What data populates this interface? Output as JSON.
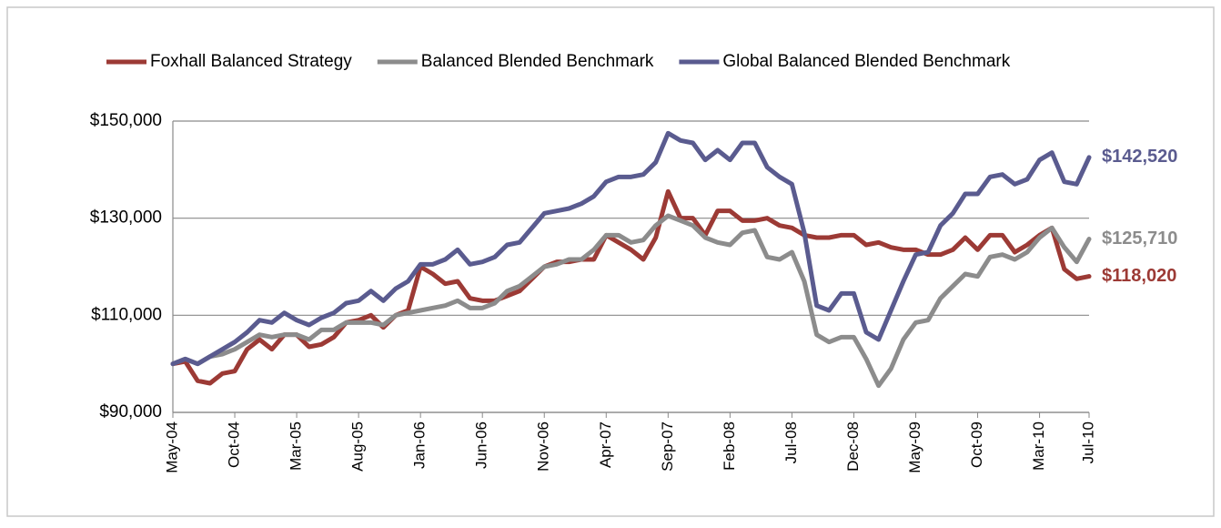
{
  "chart_data": {
    "type": "line",
    "categories": [
      "May-04",
      null,
      null,
      null,
      null,
      "Oct-04",
      null,
      null,
      null,
      null,
      "Mar-05",
      null,
      null,
      null,
      null,
      "Aug-05",
      null,
      null,
      null,
      null,
      "Jan-06",
      null,
      null,
      null,
      null,
      "Jun-06",
      null,
      null,
      null,
      null,
      "Nov-06",
      null,
      null,
      null,
      null,
      "Apr-07",
      null,
      null,
      null,
      null,
      "Sep-07",
      null,
      null,
      null,
      null,
      "Feb-08",
      null,
      null,
      null,
      null,
      "Jul-08",
      null,
      null,
      null,
      null,
      "Dec-08",
      null,
      null,
      null,
      null,
      "May-09",
      null,
      null,
      null,
      null,
      "Oct-09",
      null,
      null,
      null,
      null,
      "Mar-10",
      null,
      null,
      null,
      "Jul-10"
    ],
    "series": [
      {
        "name": "Foxhall Balanced Strategy",
        "color": "#9c3a35",
        "values": [
          100000,
          100500,
          96500,
          96000,
          98000,
          98500,
          103000,
          105000,
          103000,
          106000,
          106000,
          103500,
          104000,
          105500,
          108500,
          109000,
          110000,
          107500,
          110000,
          111000,
          120000,
          118500,
          116500,
          117000,
          113500,
          113000,
          113000,
          114000,
          115000,
          117500,
          120000,
          121000,
          121000,
          121500,
          121500,
          126500,
          125000,
          123500,
          121500,
          126000,
          135500,
          130000,
          130000,
          126500,
          131500,
          131500,
          129500,
          129500,
          130000,
          128500,
          128000,
          126500,
          126000,
          126000,
          126500,
          126500,
          124500,
          125000,
          124000,
          123500,
          123500,
          122500,
          122500,
          123500,
          126000,
          123500,
          126500,
          126500,
          123000,
          124500,
          126500,
          128000,
          119500,
          117500,
          118020
        ],
        "value_labels": [
          null,
          null,
          null,
          null,
          null,
          null,
          null,
          null,
          null,
          null,
          null,
          null,
          null,
          null,
          null,
          null,
          null,
          null,
          null,
          null,
          null,
          null,
          null,
          null,
          null,
          null,
          null,
          null,
          null,
          null,
          null,
          null,
          null,
          null,
          null,
          null,
          null,
          null,
          null,
          null,
          null,
          null,
          null,
          null,
          null,
          null,
          null,
          null,
          null,
          null,
          null,
          null,
          null,
          null,
          null,
          null,
          null,
          null,
          null,
          null,
          null,
          null,
          null,
          null,
          null,
          null,
          null,
          null,
          null,
          null,
          null,
          null,
          null,
          null,
          "$118,020"
        ]
      },
      {
        "name": "Balanced Blended Benchmark",
        "color": "#8c8c8c",
        "values": [
          100000,
          101000,
          100000,
          101500,
          102000,
          103000,
          104500,
          106000,
          105500,
          106000,
          106000,
          105000,
          107000,
          107000,
          108500,
          108500,
          108500,
          108000,
          110000,
          110500,
          111000,
          111500,
          112000,
          113000,
          111500,
          111500,
          112500,
          115000,
          116000,
          118000,
          120000,
          120500,
          121500,
          121500,
          123500,
          126500,
          126500,
          125000,
          125500,
          128500,
          130500,
          129500,
          128500,
          126000,
          125000,
          124500,
          127000,
          127500,
          122000,
          121500,
          123000,
          117000,
          106000,
          104500,
          105500,
          105500,
          101000,
          95500,
          99000,
          105000,
          108500,
          109000,
          113500,
          116000,
          118500,
          118000,
          122000,
          122500,
          121500,
          123000,
          126000,
          128000,
          124000,
          121000,
          125710
        ],
        "value_labels": [
          null,
          null,
          null,
          null,
          null,
          null,
          null,
          null,
          null,
          null,
          null,
          null,
          null,
          null,
          null,
          null,
          null,
          null,
          null,
          null,
          null,
          null,
          null,
          null,
          null,
          null,
          null,
          null,
          null,
          null,
          null,
          null,
          null,
          null,
          null,
          null,
          null,
          null,
          null,
          null,
          null,
          null,
          null,
          null,
          null,
          null,
          null,
          null,
          null,
          null,
          null,
          null,
          null,
          null,
          null,
          null,
          null,
          null,
          null,
          null,
          null,
          null,
          null,
          null,
          null,
          null,
          null,
          null,
          null,
          null,
          null,
          null,
          null,
          null,
          "$125,710"
        ]
      },
      {
        "name": "Global Balanced Blended Benchmark",
        "color": "#5a5b8f",
        "values": [
          100000,
          101000,
          100000,
          101500,
          103000,
          104500,
          106500,
          109000,
          108500,
          110500,
          109000,
          108000,
          109500,
          110500,
          112500,
          113000,
          115000,
          113000,
          115500,
          117000,
          120500,
          120500,
          121500,
          123500,
          120500,
          121000,
          122000,
          124500,
          125000,
          128000,
          131000,
          131500,
          132000,
          133000,
          134500,
          137500,
          138500,
          138500,
          139000,
          141500,
          147500,
          146000,
          145500,
          142000,
          144000,
          142000,
          145500,
          145500,
          140500,
          138500,
          137000,
          127000,
          112000,
          111000,
          114500,
          114500,
          106500,
          105000,
          111000,
          117000,
          122500,
          123000,
          128500,
          131000,
          135000,
          135000,
          138500,
          139000,
          137000,
          138000,
          142000,
          143500,
          137500,
          137000,
          142520
        ],
        "value_labels": [
          null,
          null,
          null,
          null,
          null,
          null,
          null,
          null,
          null,
          null,
          null,
          null,
          null,
          null,
          null,
          null,
          null,
          null,
          null,
          null,
          null,
          null,
          null,
          null,
          null,
          null,
          null,
          null,
          null,
          null,
          null,
          null,
          null,
          null,
          null,
          null,
          null,
          null,
          null,
          null,
          null,
          null,
          null,
          null,
          null,
          null,
          null,
          null,
          null,
          null,
          null,
          null,
          null,
          null,
          null,
          null,
          null,
          null,
          null,
          null,
          null,
          null,
          null,
          null,
          null,
          null,
          null,
          null,
          null,
          null,
          null,
          null,
          null,
          null,
          "$142,520"
        ]
      }
    ],
    "ylim": [
      90000,
      150000
    ],
    "yticks": [
      {
        "value": 90000,
        "label": "$90,000"
      },
      {
        "value": 110000,
        "label": "$110,000"
      },
      {
        "value": 130000,
        "label": "$130,000"
      },
      {
        "value": 150000,
        "label": "$150,000"
      }
    ],
    "grid": true,
    "legend": "top"
  }
}
